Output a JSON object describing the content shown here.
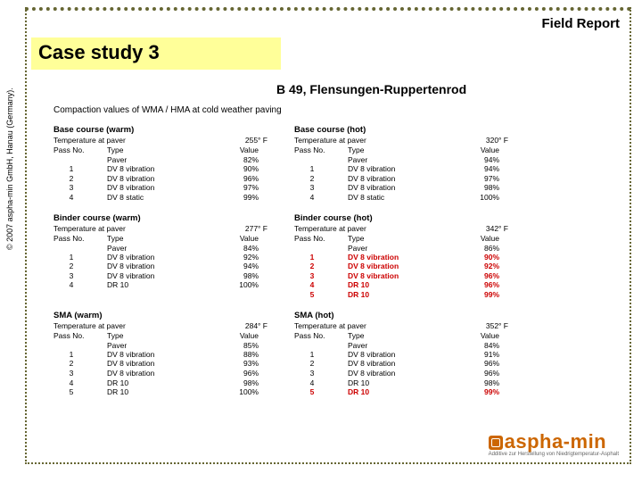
{
  "header": {
    "fieldReport": "Field Report"
  },
  "title": "Case study 3",
  "subtitle": "B 49, Flensungen-Ruppertenrod",
  "mainHeading": "Compaction values of WMA / HMA at cold weather paving",
  "copyright": "© 2007 aspha-min GmbH, Hanau (Germany).",
  "logo": {
    "brand": "aspha-min",
    "tagline": "Additive zur Herstellung von Niedrigtemperatur-Asphalt"
  },
  "labels": {
    "tempAtPaver": "Temperature at paver",
    "passNo": "Pass No.",
    "type": "Type",
    "value": "Value",
    "paver": "Paver"
  },
  "sections": [
    {
      "warm": {
        "title": "Base course (warm)",
        "temp": "255° F",
        "paverValue": "82%",
        "rows": [
          {
            "n": "1",
            "t": "DV 8 vibration",
            "v": "90%"
          },
          {
            "n": "2",
            "t": "DV 8 vibration",
            "v": "96%"
          },
          {
            "n": "3",
            "t": "DV 8 vibration",
            "v": "97%"
          },
          {
            "n": "4",
            "t": "DV 8 static",
            "v": "99%"
          }
        ]
      },
      "hot": {
        "title": "Base course (hot)",
        "temp": "320° F",
        "paverValue": "94%",
        "rows": [
          {
            "n": "1",
            "t": "DV 8 vibration",
            "v": "94%"
          },
          {
            "n": "2",
            "t": "DV 8 vibration",
            "v": "97%"
          },
          {
            "n": "3",
            "t": "DV 8 vibration",
            "v": "98%"
          },
          {
            "n": "4",
            "t": "DV 8 static",
            "v": "100%"
          }
        ]
      }
    },
    {
      "warm": {
        "title": "Binder course (warm)",
        "temp": "277° F",
        "paverValue": "84%",
        "rows": [
          {
            "n": "1",
            "t": "DV 8 vibration",
            "v": "92%"
          },
          {
            "n": "2",
            "t": "DV 8 vibration",
            "v": "94%"
          },
          {
            "n": "3",
            "t": "DV 8 vibration",
            "v": "98%"
          },
          {
            "n": "4",
            "t": "DR 10",
            "v": "100%"
          }
        ]
      },
      "hot": {
        "title": "Binder course (hot)",
        "temp": "342° F",
        "paverValue": "86%",
        "rows": [
          {
            "n": "1",
            "t": "DV 8 vibration",
            "v": "90%",
            "hl": true
          },
          {
            "n": "2",
            "t": "DV 8 vibration",
            "v": "92%",
            "hl": true
          },
          {
            "n": "3",
            "t": "DV 8 vibration",
            "v": "96%",
            "hl": true
          },
          {
            "n": "4",
            "t": "DR 10",
            "v": "96%",
            "hl": true
          },
          {
            "n": "5",
            "t": "DR 10",
            "v": "99%",
            "hl": true
          }
        ]
      }
    },
    {
      "warm": {
        "title": "SMA (warm)",
        "temp": "284° F",
        "paverValue": "85%",
        "rows": [
          {
            "n": "1",
            "t": "DV 8 vibration",
            "v": "88%"
          },
          {
            "n": "2",
            "t": "DV 8 vibration",
            "v": "93%"
          },
          {
            "n": "3",
            "t": "DV 8 vibration",
            "v": "96%"
          },
          {
            "n": "4",
            "t": "DR 10",
            "v": "98%"
          },
          {
            "n": "5",
            "t": "DR 10",
            "v": "100%"
          }
        ]
      },
      "hot": {
        "title": "SMA (hot)",
        "temp": "352° F",
        "paverValue": "84%",
        "rows": [
          {
            "n": "1",
            "t": "DV 8 vibration",
            "v": "91%"
          },
          {
            "n": "2",
            "t": "DV 8 vibration",
            "v": "96%"
          },
          {
            "n": "3",
            "t": "DV 8 vibration",
            "v": "96%"
          },
          {
            "n": "4",
            "t": "DR 10",
            "v": "98%"
          },
          {
            "n": "5",
            "t": "DR 10",
            "v": "99%",
            "hl": true
          }
        ]
      }
    }
  ]
}
